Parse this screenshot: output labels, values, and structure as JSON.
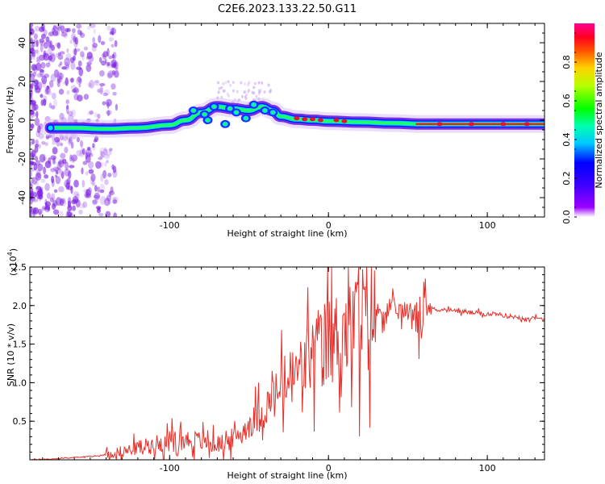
{
  "title": "C2E6.2023.133.22.50.G11",
  "chart_data": [
    {
      "type": "heatmap",
      "xlabel": "Height of straight line (km)",
      "ylabel": "Frequency (Hz)",
      "xlim": [
        -188,
        136
      ],
      "ylim": [
        -50,
        50
      ],
      "xticks": [
        -100,
        0,
        100
      ],
      "yticks": [
        -40,
        -20,
        0,
        20,
        40
      ],
      "grid": false,
      "colorbar": {
        "label": "Normalized spectral amplitude",
        "range": [
          0.0,
          1.0
        ],
        "ticks": [
          0.0,
          0.2,
          0.4,
          0.6,
          0.8
        ],
        "tick_labels": [
          "0.0",
          "0.2",
          "0.4",
          "0.6",
          "0.8"
        ]
      },
      "ridge": {
        "x": [
          -175,
          -160,
          -140,
          -120,
          -100,
          -90,
          -80,
          -70,
          -60,
          -50,
          -42,
          -35,
          -30,
          -20,
          -10,
          0,
          20,
          40,
          60,
          80,
          100,
          120,
          136
        ],
        "y": [
          -4,
          -4,
          -4.5,
          -4,
          -2.5,
          0,
          4,
          7,
          6,
          5,
          7,
          5,
          2,
          0.5,
          0,
          -0.5,
          -1,
          -1.5,
          -2,
          -2,
          -2,
          -2,
          -2
        ]
      },
      "colors": {
        "ridge_peak": "#e8102a",
        "noise": "#7b1fe0"
      }
    },
    {
      "type": "line",
      "xlabel": "Height of straight line (km)",
      "ylabel": "SNR (10 * v/v)",
      "y_multiplier": "(x10^4)",
      "xlim": [
        -188,
        136
      ],
      "ylim": [
        0,
        25000
      ],
      "xticks": [
        -100,
        0,
        100
      ],
      "yticks": [
        5000,
        10000,
        15000,
        20000,
        25000
      ],
      "ytick_labels": [
        "0.5",
        "1.0",
        "1.5",
        "2.0",
        "2.5"
      ],
      "grid": false,
      "series": [
        {
          "color": "#e8302a",
          "x": [
            -188,
            -175,
            -160,
            -145,
            -135,
            -125,
            -115,
            -105,
            -95,
            -88,
            -80,
            -72,
            -65,
            -58,
            -50,
            -45,
            -40,
            -35,
            -30,
            -25,
            -20,
            -15,
            -10,
            -5,
            0,
            5,
            10,
            15,
            20,
            25,
            30,
            35,
            40,
            45,
            50,
            55,
            58,
            60,
            65,
            70,
            80,
            90,
            100,
            110,
            120,
            130,
            136
          ],
          "y": [
            0,
            100,
            300,
            500,
            900,
            1300,
            1800,
            2200,
            2600,
            2600,
            2400,
            2000,
            2200,
            3000,
            4500,
            5500,
            6500,
            8000,
            9000,
            10500,
            11000,
            12500,
            13500,
            14500,
            15500,
            16000,
            16500,
            17500,
            18500,
            19000,
            19200,
            19300,
            19400,
            19300,
            19200,
            19500,
            16000,
            19800,
            19600,
            19500,
            19300,
            19100,
            18900,
            18700,
            18500,
            18300,
            18200
          ]
        }
      ]
    }
  ]
}
